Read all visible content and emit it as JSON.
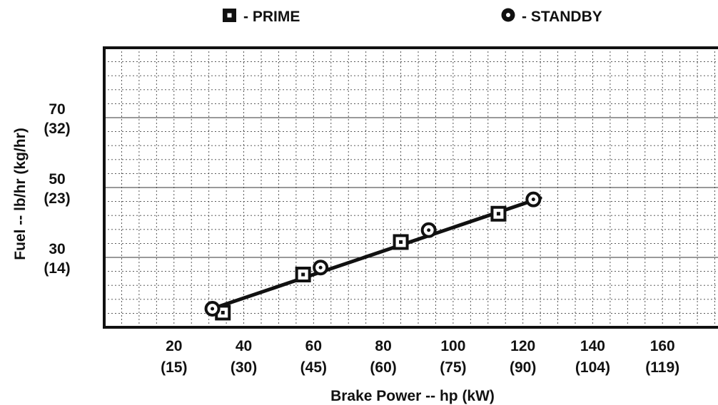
{
  "chart_data": {
    "type": "line",
    "title": "",
    "xlabel": "Brake Power -- hp (kW)",
    "ylabel": "Fuel -- lb/hr (kg/hr)",
    "xlim": [
      0,
      180
    ],
    "ylim": [
      10,
      90
    ],
    "x_ticks": [
      {
        "value": 20,
        "hp": "20",
        "kw": "(15)"
      },
      {
        "value": 40,
        "hp": "40",
        "kw": "(30)"
      },
      {
        "value": 60,
        "hp": "60",
        "kw": "(45)"
      },
      {
        "value": 80,
        "hp": "80",
        "kw": "(60)"
      },
      {
        "value": 100,
        "hp": "100",
        "kw": "(75)"
      },
      {
        "value": 120,
        "hp": "120",
        "kw": "(90)"
      },
      {
        "value": 140,
        "hp": "140",
        "kw": "(104)"
      },
      {
        "value": 160,
        "hp": "160",
        "kw": "(119)"
      }
    ],
    "y_ticks": [
      {
        "value": 30,
        "lb": "30",
        "kg": "(14)"
      },
      {
        "value": 50,
        "lb": "50",
        "kg": "(23)"
      },
      {
        "value": 70,
        "lb": "70",
        "kg": "(32)"
      }
    ],
    "grid": true,
    "legend_position": "top",
    "series": [
      {
        "name": "- PRIME",
        "marker": "square",
        "x": [
          34,
          57,
          85,
          113
        ],
        "y": [
          14.2,
          25.1,
          34.4,
          42.5
        ]
      },
      {
        "name": "- STANDBY",
        "marker": "circle",
        "x": [
          31,
          62,
          93,
          123
        ],
        "y": [
          15.3,
          27.1,
          37.8,
          46.6
        ]
      }
    ],
    "trend_line": {
      "x": [
        30,
        125
      ],
      "y": [
        15,
        47
      ]
    },
    "colors": {
      "line": "#111111",
      "marker_fill": "#ffffff",
      "grid": "#444444"
    }
  }
}
